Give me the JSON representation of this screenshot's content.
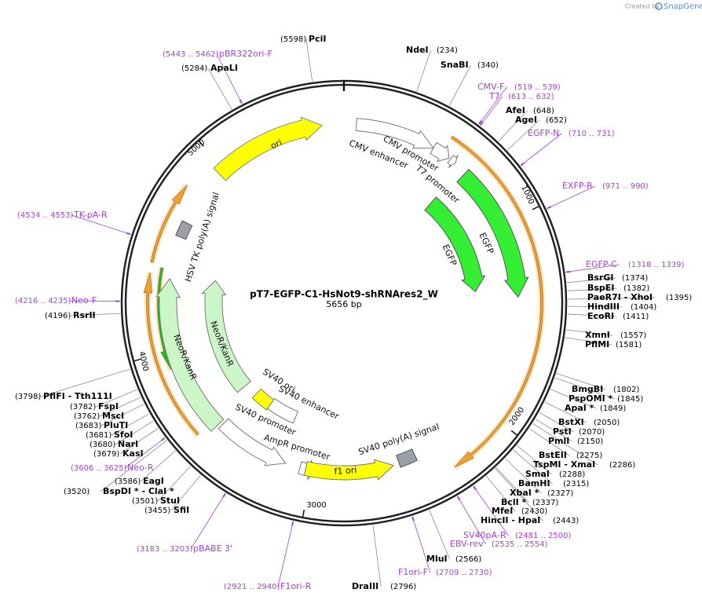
{
  "credit": {
    "prefix": "Created by",
    "brand": "SnapGene"
  },
  "map": {
    "name": "pT7-EGFP-C1-HsNot9-shRNAres2_W",
    "length": "5656 bp"
  },
  "scale": [
    "1000",
    "2000",
    "3000",
    "4000",
    "5000"
  ],
  "features": [
    "ori",
    "CMV enhancer",
    "CMV promoter",
    "T7 promoter",
    "EGFP",
    "EGFP",
    "NeoR/KanR",
    "NeoR/KanR",
    "HSV TK poly(A) signal",
    "SV40 ori",
    "SV40 enhancer",
    "SV40 promoter",
    "AmpR promoter",
    "f1 ori",
    "SV40 poly(A) signal"
  ],
  "sites": [
    {
      "name": "PciI",
      "pos": "(5598)"
    },
    {
      "name": "ApaLI",
      "pos": "(5284)"
    },
    {
      "name": "NdeI",
      "pos": "(234)"
    },
    {
      "name": "SnaBI",
      "pos": "(340)"
    },
    {
      "name": "AfeI",
      "pos": "(648)"
    },
    {
      "name": "AgeI",
      "pos": "(652)"
    },
    {
      "name": "BsrGI",
      "pos": "(1374)"
    },
    {
      "name": "BspEI",
      "pos": "(1382)"
    },
    {
      "name": "PaeR7I - XhoI",
      "pos": "(1395)"
    },
    {
      "name": "HindIII",
      "pos": "(1404)"
    },
    {
      "name": "EcoRI",
      "pos": "(1411)"
    },
    {
      "name": "XmnI",
      "pos": "(1557)"
    },
    {
      "name": "PflMI",
      "pos": "(1581)"
    },
    {
      "name": "BmgBI",
      "pos": "(1802)"
    },
    {
      "name": "PspOMI *",
      "pos": "(1845)"
    },
    {
      "name": "ApaI *",
      "pos": "(1849)"
    },
    {
      "name": "BstXI",
      "pos": "(2050)"
    },
    {
      "name": "PstI",
      "pos": "(2070)"
    },
    {
      "name": "PmlI",
      "pos": "(2150)"
    },
    {
      "name": "BstEII",
      "pos": "(2275)"
    },
    {
      "name": "TspMI - XmaI",
      "pos": "(2286)"
    },
    {
      "name": "SmaI",
      "pos": "(2288)"
    },
    {
      "name": "BamHI",
      "pos": "(2315)"
    },
    {
      "name": "XbaI *",
      "pos": "(2327)"
    },
    {
      "name": "BclI *",
      "pos": "(2337)"
    },
    {
      "name": "MfeI",
      "pos": "(2430)"
    },
    {
      "name": "HincII - HpaI",
      "pos": "(2443)"
    },
    {
      "name": "MluI",
      "pos": "(2566)"
    },
    {
      "name": "DraIII",
      "pos": "(2796)"
    },
    {
      "name": "RsrII",
      "pos": "(4196)"
    },
    {
      "name": "PflFI - Tth111I",
      "pos": "(3798)"
    },
    {
      "name": "FspI",
      "pos": "(3782)"
    },
    {
      "name": "MscI",
      "pos": "(3762)"
    },
    {
      "name": "PluTI",
      "pos": "(3683)"
    },
    {
      "name": "SfoI",
      "pos": "(3681)"
    },
    {
      "name": "NarI",
      "pos": "(3680)"
    },
    {
      "name": "KasI",
      "pos": "(3679)"
    },
    {
      "name": "EagI",
      "pos": "(3586)"
    },
    {
      "name": "BspDI * - ClaI *",
      "pos": "(3520)"
    },
    {
      "name": "StuI",
      "pos": "(3501)"
    },
    {
      "name": "SfiI",
      "pos": "(3455)"
    }
  ],
  "primers": [
    {
      "name": "pBR322ori-F",
      "range": "(5443 .. 5462)"
    },
    {
      "name": "CMV-F",
      "range": "(519 .. 539)"
    },
    {
      "name": "T7",
      "range": "(613 .. 632)"
    },
    {
      "name": "EGFP-N",
      "range": "(710 .. 731)"
    },
    {
      "name": "EXFP-R",
      "range": "(971 .. 990)"
    },
    {
      "name": "EGFP-C",
      "range": "(1318 .. 1339)"
    },
    {
      "name": "SV40pA-R",
      "range": "(2481 .. 2500)"
    },
    {
      "name": "EBV-rev",
      "range": "(2535 .. 2554)"
    },
    {
      "name": "F1ori-F",
      "range": "(2709 .. 2730)"
    },
    {
      "name": "F1ori-R",
      "range": "(2921 .. 2940)"
    },
    {
      "name": "pBABE 3'",
      "range": "(3183 .. 3203)"
    },
    {
      "name": "Neo-R",
      "range": "(3606 .. 3625)"
    },
    {
      "name": "Neo-F",
      "range": "(4216 .. 4235)"
    },
    {
      "name": "TK-pA-R",
      "range": "(4534 .. 4553)"
    }
  ]
}
